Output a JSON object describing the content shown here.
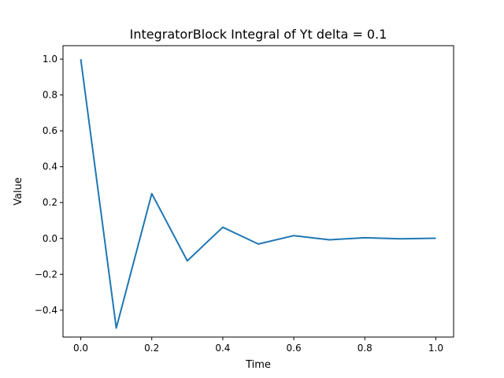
{
  "chart_data": {
    "type": "line",
    "title": "IntegratorBlock Integral of Yt delta = 0.1",
    "xlabel": "Time",
    "ylabel": "Value",
    "xlim": [
      -0.05,
      1.05
    ],
    "ylim": [
      -0.55,
      1.075
    ],
    "xticks": [
      0.0,
      0.2,
      0.4,
      0.6,
      0.8,
      1.0
    ],
    "xtick_labels": [
      "0.0",
      "0.2",
      "0.4",
      "0.6",
      "0.8",
      "1.0"
    ],
    "yticks": [
      -0.4,
      -0.2,
      0.0,
      0.2,
      0.4,
      0.6,
      0.8,
      1.0
    ],
    "ytick_labels": [
      "−0.4",
      "−0.2",
      "0.0",
      "0.2",
      "0.4",
      "0.6",
      "0.8",
      "1.0"
    ],
    "grid": false,
    "series": [
      {
        "color": "#1f77b4",
        "x": [
          0.0,
          0.1,
          0.2,
          0.3,
          0.4,
          0.5,
          0.6,
          0.7,
          0.8,
          0.9,
          1.0
        ],
        "y": [
          1.0,
          -0.5,
          0.25,
          -0.125,
          0.0625,
          -0.03125,
          0.015625,
          -0.0078,
          0.0039,
          -0.002,
          0.001
        ]
      }
    ]
  }
}
